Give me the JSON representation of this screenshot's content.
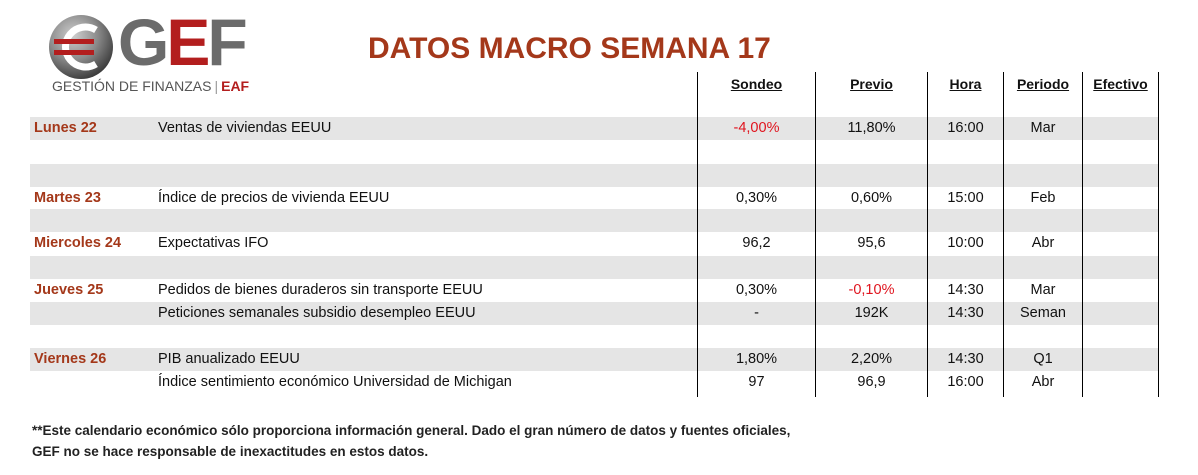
{
  "logo": {
    "wordmark_g": "G",
    "wordmark_e": "E",
    "wordmark_f": "F",
    "subtitle": "GESTIÓN DE FINANZAS",
    "separator": "|",
    "subtitle_suffix": "EAF"
  },
  "title": "DATOS MACRO SEMANA 17",
  "columns": {
    "sondeo": "Sondeo",
    "previo": "Previo",
    "hora": "Hora",
    "periodo": "Periodo",
    "efectivo": "Efectivo"
  },
  "rows": [
    {
      "day": "Lunes 22",
      "desc": "Ventas de viviendas EEUU",
      "sondeo": "-4,00%",
      "previo": "11,80%",
      "hora": "16:00",
      "periodo": "Mar"
    },
    {
      "day": "Martes 23",
      "desc": "Índice de precios de vivienda EEUU",
      "sondeo": "0,30%",
      "previo": "0,60%",
      "hora": "15:00",
      "periodo": "Feb"
    },
    {
      "day": "Miercoles 24",
      "desc": "Expectativas IFO",
      "sondeo": "96,2",
      "previo": "95,6",
      "hora": "10:00",
      "periodo": "Abr"
    },
    {
      "day": "Jueves 25",
      "desc": "Pedidos de bienes duraderos sin transporte EEUU",
      "sondeo": "0,30%",
      "previo": "-0,10%",
      "hora": "14:30",
      "periodo": "Mar"
    },
    {
      "day": "",
      "desc": "Peticiones semanales subsidio desempleo EEUU",
      "sondeo": "-",
      "previo": "192K",
      "hora": "14:30",
      "periodo": "Seman"
    },
    {
      "day": "Viernes 26",
      "desc": "PIB anualizado EEUU",
      "sondeo": "1,80%",
      "previo": "2,20%",
      "hora": "14:30",
      "periodo": "Q1"
    },
    {
      "day": "",
      "desc": "Índice sentimiento económico Universidad de Michigan",
      "sondeo": "97",
      "previo": "96,9",
      "hora": "16:00",
      "periodo": "Abr"
    }
  ],
  "footer": {
    "line1": "**Este calendario económico sólo proporciona información general. Dado el gran número de datos y fuentes oficiales,",
    "line2": "GEF no se hace responsable de inexactitudes en estos datos."
  },
  "colors": {
    "title": "#a4381a",
    "negative": "#e0141e",
    "band": "#e5e5e5",
    "brand_red": "#b31e1e"
  }
}
